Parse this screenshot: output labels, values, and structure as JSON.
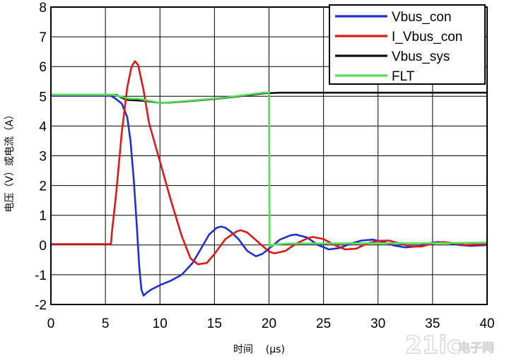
{
  "chart_data": {
    "type": "line",
    "title": "",
    "xlabel": "时间    (μs)",
    "ylabel": "电压（V）或电流（A）",
    "xlim": [
      0,
      40
    ],
    "ylim": [
      -2,
      8
    ],
    "xticks": [
      0,
      5,
      10,
      15,
      20,
      25,
      30,
      35,
      40
    ],
    "yticks": [
      -2,
      -1,
      0,
      1,
      2,
      3,
      4,
      5,
      6,
      7,
      8
    ],
    "grid": true,
    "legend_position": "top-right",
    "series": [
      {
        "name": "Vbus_con",
        "color": "#1f2fd0",
        "points": [
          [
            0,
            5.02
          ],
          [
            5.5,
            5.02
          ],
          [
            6,
            4.9
          ],
          [
            6.5,
            4.75
          ],
          [
            7,
            4.3
          ],
          [
            7.3,
            3.5
          ],
          [
            7.6,
            2.2
          ],
          [
            7.9,
            0.5
          ],
          [
            8.1,
            -0.7
          ],
          [
            8.3,
            -1.5
          ],
          [
            8.5,
            -1.7
          ],
          [
            8.8,
            -1.6
          ],
          [
            9.2,
            -1.5
          ],
          [
            10,
            -1.35
          ],
          [
            11,
            -1.2
          ],
          [
            12,
            -1.0
          ],
          [
            13,
            -0.6
          ],
          [
            13.8,
            -0.1
          ],
          [
            14.5,
            0.35
          ],
          [
            15.2,
            0.58
          ],
          [
            15.6,
            0.62
          ],
          [
            16,
            0.58
          ],
          [
            16.5,
            0.45
          ],
          [
            17.2,
            0.2
          ],
          [
            18,
            -0.2
          ],
          [
            18.8,
            -0.38
          ],
          [
            19.4,
            -0.3
          ],
          [
            20,
            -0.12
          ],
          [
            21,
            0.18
          ],
          [
            22,
            0.33
          ],
          [
            22.5,
            0.35
          ],
          [
            23.5,
            0.25
          ],
          [
            24.5,
            0.0
          ],
          [
            25.5,
            -0.15
          ],
          [
            26.5,
            -0.1
          ],
          [
            27.5,
            0.05
          ],
          [
            28.5,
            0.15
          ],
          [
            29.5,
            0.18
          ],
          [
            30.5,
            0.1
          ],
          [
            31.5,
            -0.02
          ],
          [
            32.5,
            -0.08
          ],
          [
            33.5,
            -0.05
          ],
          [
            34.5,
            0.05
          ],
          [
            35.5,
            0.1
          ],
          [
            36.5,
            0.06
          ],
          [
            37.5,
            0.0
          ],
          [
            38.5,
            -0.03
          ],
          [
            40,
            0.0
          ]
        ]
      },
      {
        "name": "I_Vbus_con",
        "color": "#e01818",
        "points": [
          [
            0,
            0.03
          ],
          [
            5.5,
            0.03
          ],
          [
            5.6,
            0.45
          ],
          [
            6,
            1.8
          ],
          [
            6.5,
            3.8
          ],
          [
            7,
            5.3
          ],
          [
            7.4,
            6.0
          ],
          [
            7.7,
            6.18
          ],
          [
            8,
            6.05
          ],
          [
            8.5,
            5.2
          ],
          [
            9,
            4.1
          ],
          [
            10,
            2.8
          ],
          [
            11,
            1.5
          ],
          [
            12,
            0.3
          ],
          [
            12.8,
            -0.45
          ],
          [
            13.5,
            -0.65
          ],
          [
            14.3,
            -0.6
          ],
          [
            15,
            -0.3
          ],
          [
            16,
            0.2
          ],
          [
            17,
            0.45
          ],
          [
            17.4,
            0.5
          ],
          [
            18,
            0.42
          ],
          [
            19,
            0.1
          ],
          [
            20,
            -0.22
          ],
          [
            20.5,
            -0.28
          ],
          [
            21.5,
            -0.2
          ],
          [
            22.5,
            0.05
          ],
          [
            23.5,
            0.22
          ],
          [
            24,
            0.27
          ],
          [
            25,
            0.2
          ],
          [
            26,
            0.0
          ],
          [
            27,
            -0.15
          ],
          [
            28,
            -0.12
          ],
          [
            29,
            0.05
          ],
          [
            30,
            0.14
          ],
          [
            31,
            0.15
          ],
          [
            32,
            0.05
          ],
          [
            33,
            -0.05
          ],
          [
            34,
            -0.05
          ],
          [
            35,
            0.05
          ],
          [
            36,
            0.1
          ],
          [
            37,
            0.06
          ],
          [
            38,
            0.0
          ],
          [
            40,
            0.03
          ]
        ]
      },
      {
        "name": "Vbus_sys",
        "color": "#111111",
        "points": [
          [
            0,
            5.05
          ],
          [
            6,
            5.05
          ],
          [
            6.5,
            4.95
          ],
          [
            7,
            4.88
          ],
          [
            8,
            4.86
          ],
          [
            9,
            4.83
          ],
          [
            10,
            4.78
          ],
          [
            11,
            4.79
          ],
          [
            12,
            4.82
          ],
          [
            14,
            4.88
          ],
          [
            16,
            4.95
          ],
          [
            18,
            5.03
          ],
          [
            19.5,
            5.1
          ],
          [
            21,
            5.12
          ],
          [
            25,
            5.12
          ],
          [
            30,
            5.12
          ],
          [
            35,
            5.12
          ],
          [
            40,
            5.12
          ]
        ]
      },
      {
        "name": "FLT",
        "color": "#55dd55",
        "points": [
          [
            0,
            5.05
          ],
          [
            5.8,
            5.05
          ],
          [
            6.5,
            4.98
          ],
          [
            7.2,
            4.92
          ],
          [
            8,
            4.92
          ],
          [
            9,
            4.85
          ],
          [
            10,
            4.78
          ],
          [
            11,
            4.8
          ],
          [
            12,
            4.83
          ],
          [
            14,
            4.89
          ],
          [
            16,
            4.96
          ],
          [
            18,
            5.05
          ],
          [
            19.5,
            5.12
          ],
          [
            20,
            5.12
          ],
          [
            20.05,
            -0.05
          ],
          [
            20.5,
            0.02
          ],
          [
            22,
            0.05
          ],
          [
            25,
            0.05
          ],
          [
            30,
            0.06
          ],
          [
            35,
            0.06
          ],
          [
            40,
            0.08
          ]
        ]
      }
    ]
  },
  "watermark": {
    "main": "21ic",
    "sub": "电子网"
  }
}
